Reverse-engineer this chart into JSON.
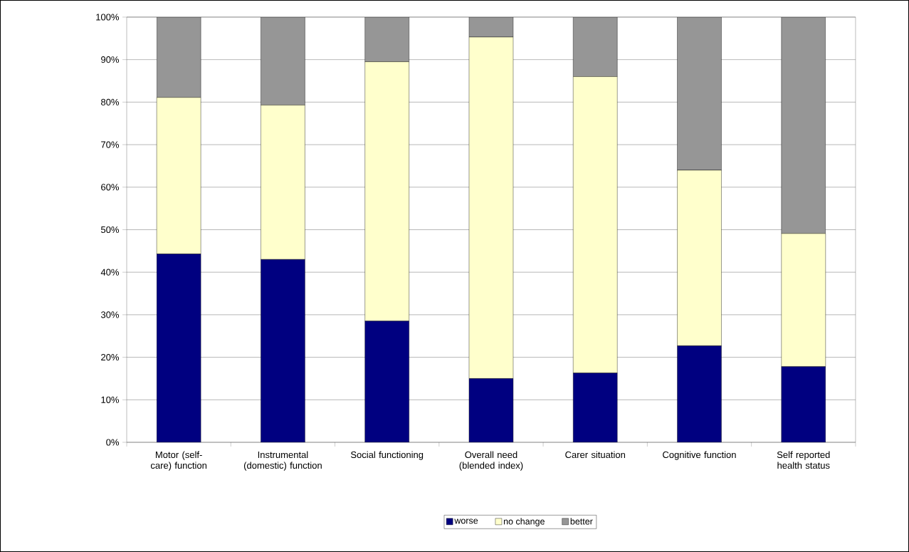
{
  "chart_data": {
    "type": "bar",
    "stacked": true,
    "categories": [
      "Motor (self-care) function",
      "Instrumental (domestic) function",
      "Social functioning",
      "Overall need (blended index)",
      "Carer situation",
      "Cognitive function",
      "Self reported health status"
    ],
    "series": [
      {
        "name": "worse",
        "color": "#000080",
        "values": [
          44.3,
          43.0,
          28.5,
          15.0,
          16.3,
          22.7,
          17.8
        ]
      },
      {
        "name": "no change",
        "color": "#ffffcc",
        "values": [
          36.8,
          36.3,
          61.0,
          80.3,
          69.7,
          41.3,
          31.3
        ]
      },
      {
        "name": "better",
        "color": "#969696",
        "values": [
          18.9,
          20.7,
          10.5,
          4.7,
          14.0,
          36.0,
          50.9
        ]
      }
    ],
    "ylim": [
      0,
      100
    ],
    "yticks": [
      {
        "value": 0,
        "label": "0%"
      },
      {
        "value": 10,
        "label": "10%"
      },
      {
        "value": 20,
        "label": "20%"
      },
      {
        "value": 30,
        "label": "30%"
      },
      {
        "value": 40,
        "label": "40%"
      },
      {
        "value": 50,
        "label": "50%"
      },
      {
        "value": 60,
        "label": "60%"
      },
      {
        "value": 70,
        "label": "70%"
      },
      {
        "value": 80,
        "label": "80%"
      },
      {
        "value": 90,
        "label": "90%"
      },
      {
        "value": 100,
        "label": "100%"
      }
    ],
    "grid": "y",
    "legend": "bottom"
  }
}
